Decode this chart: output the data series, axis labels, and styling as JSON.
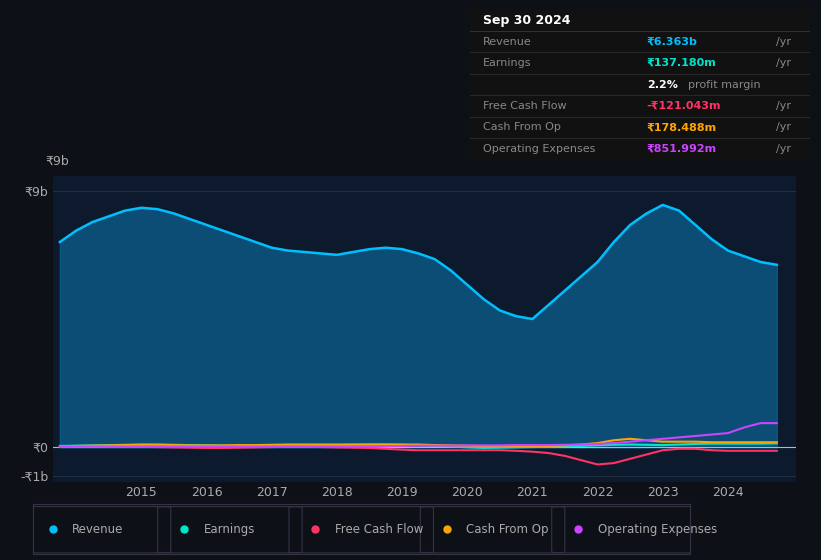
{
  "bg_color": "#0d1117",
  "chart_bg": "#0d1a2d",
  "years": [
    2013.75,
    2014.0,
    2014.25,
    2014.5,
    2014.75,
    2015.0,
    2015.25,
    2015.5,
    2015.75,
    2016.0,
    2016.25,
    2016.5,
    2016.75,
    2017.0,
    2017.25,
    2017.5,
    2017.75,
    2018.0,
    2018.25,
    2018.5,
    2018.75,
    2019.0,
    2019.25,
    2019.5,
    2019.75,
    2020.0,
    2020.25,
    2020.5,
    2020.75,
    2021.0,
    2021.25,
    2021.5,
    2021.75,
    2022.0,
    2022.25,
    2022.5,
    2022.75,
    2023.0,
    2023.25,
    2023.5,
    2023.75,
    2024.0,
    2024.25,
    2024.5,
    2024.75
  ],
  "revenue": [
    7.2,
    7.6,
    7.9,
    8.1,
    8.3,
    8.4,
    8.35,
    8.2,
    8.0,
    7.8,
    7.6,
    7.4,
    7.2,
    7.0,
    6.9,
    6.85,
    6.8,
    6.75,
    6.85,
    6.95,
    7.0,
    6.95,
    6.8,
    6.6,
    6.2,
    5.7,
    5.2,
    4.8,
    4.6,
    4.5,
    5.0,
    5.5,
    6.0,
    6.5,
    7.2,
    7.8,
    8.2,
    8.5,
    8.3,
    7.8,
    7.3,
    6.9,
    6.7,
    6.5,
    6.4
  ],
  "earnings": [
    0.05,
    0.06,
    0.07,
    0.08,
    0.09,
    0.1,
    0.1,
    0.09,
    0.08,
    0.07,
    0.06,
    0.05,
    0.04,
    0.04,
    0.05,
    0.06,
    0.07,
    0.08,
    0.09,
    0.1,
    0.1,
    0.09,
    0.07,
    0.05,
    0.03,
    0.0,
    -0.02,
    -0.01,
    0.0,
    0.01,
    0.02,
    0.04,
    0.05,
    0.07,
    0.09,
    0.1,
    0.09,
    0.08,
    0.1,
    0.12,
    0.13,
    0.13,
    0.13,
    0.13,
    0.14
  ],
  "free_cash_flow": [
    0.02,
    0.03,
    0.03,
    0.02,
    0.02,
    0.02,
    0.01,
    0.0,
    -0.01,
    -0.02,
    -0.02,
    -0.01,
    0.0,
    0.01,
    0.02,
    0.02,
    0.01,
    0.0,
    -0.01,
    -0.02,
    -0.05,
    -0.08,
    -0.1,
    -0.1,
    -0.1,
    -0.1,
    -0.1,
    -0.1,
    -0.12,
    -0.15,
    -0.2,
    -0.3,
    -0.45,
    -0.6,
    -0.55,
    -0.4,
    -0.25,
    -0.1,
    -0.05,
    -0.05,
    -0.1,
    -0.12,
    -0.12,
    -0.12,
    -0.12
  ],
  "cash_from_op": [
    0.04,
    0.05,
    0.06,
    0.07,
    0.08,
    0.09,
    0.09,
    0.08,
    0.07,
    0.07,
    0.07,
    0.08,
    0.08,
    0.09,
    0.1,
    0.1,
    0.1,
    0.1,
    0.1,
    0.1,
    0.1,
    0.1,
    0.1,
    0.08,
    0.07,
    0.06,
    0.04,
    0.04,
    0.04,
    0.04,
    0.05,
    0.07,
    0.1,
    0.15,
    0.25,
    0.3,
    0.25,
    0.2,
    0.2,
    0.2,
    0.18,
    0.18,
    0.18,
    0.18,
    0.18
  ],
  "op_expenses": [
    0.03,
    0.03,
    0.03,
    0.03,
    0.03,
    0.03,
    0.03,
    0.03,
    0.03,
    0.03,
    0.03,
    0.03,
    0.03,
    0.03,
    0.03,
    0.03,
    0.03,
    0.03,
    0.03,
    0.03,
    0.04,
    0.05,
    0.06,
    0.06,
    0.06,
    0.07,
    0.07,
    0.07,
    0.08,
    0.08,
    0.08,
    0.09,
    0.1,
    0.12,
    0.15,
    0.2,
    0.25,
    0.3,
    0.35,
    0.4,
    0.45,
    0.5,
    0.7,
    0.85,
    0.85
  ],
  "revenue_color": "#00bfff",
  "earnings_color": "#00e5cc",
  "fcf_color": "#ff3366",
  "cashop_color": "#ffa500",
  "opex_color": "#cc44ff",
  "ylim_top": 9.5,
  "ylim_bottom": -1.2,
  "yticks": [
    -1,
    0,
    9
  ],
  "ytick_labels": [
    "-₹1b",
    "₹0",
    "₹9b"
  ],
  "xticks": [
    2015,
    2016,
    2017,
    2018,
    2019,
    2020,
    2021,
    2022,
    2023,
    2024
  ],
  "tooltip": {
    "title": "Sep 30 2024",
    "rows": [
      {
        "label": "Revenue",
        "val": "₹6.363b",
        "suffix": " /yr",
        "color": "#00bfff",
        "indent": false
      },
      {
        "label": "Earnings",
        "val": "₹137.180m",
        "suffix": " /yr",
        "color": "#00e5cc",
        "indent": false
      },
      {
        "label": "",
        "val": "2.2%",
        "suffix": " profit margin",
        "color": "white",
        "indent": true
      },
      {
        "label": "Free Cash Flow",
        "val": "-₹121.043m",
        "suffix": " /yr",
        "color": "#ff3366",
        "indent": false
      },
      {
        "label": "Cash From Op",
        "val": "₹178.488m",
        "suffix": " /yr",
        "color": "#ffa500",
        "indent": false
      },
      {
        "label": "Operating Expenses",
        "val": "₹851.992m",
        "suffix": " /yr",
        "color": "#cc44ff",
        "indent": false
      }
    ]
  },
  "legend_items": [
    {
      "label": "Revenue",
      "color": "#00bfff"
    },
    {
      "label": "Earnings",
      "color": "#00e5cc"
    },
    {
      "label": "Free Cash Flow",
      "color": "#ff3366"
    },
    {
      "label": "Cash From Op",
      "color": "#ffa500"
    },
    {
      "label": "Operating Expenses",
      "color": "#cc44ff"
    }
  ]
}
